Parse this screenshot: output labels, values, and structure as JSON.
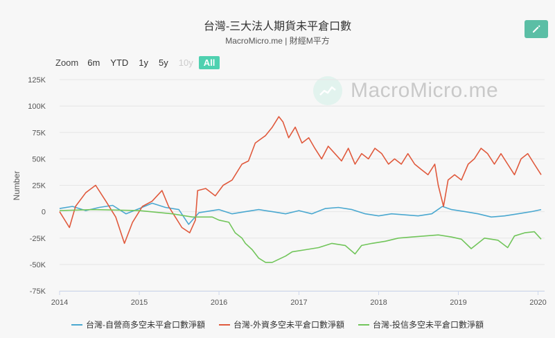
{
  "header": {
    "title": "台灣-三大法人期貨未平倉口數",
    "subtitle": "MacroMicro.me | 財經M平方"
  },
  "watermark": {
    "text": "MacroMicro.me"
  },
  "range_selector": {
    "zoom_label": "Zoom",
    "buttons": [
      {
        "label": "6m",
        "state": "normal"
      },
      {
        "label": "YTD",
        "state": "normal"
      },
      {
        "label": "1y",
        "state": "normal"
      },
      {
        "label": "5y",
        "state": "normal"
      },
      {
        "label": "10y",
        "state": "disabled"
      },
      {
        "label": "All",
        "state": "active"
      }
    ]
  },
  "colors": {
    "dealer": "#4aa8d0",
    "foreign": "#e0593c",
    "trust": "#71c55a",
    "accent": "#4fd1b0",
    "edit_button": "#5bbea5"
  },
  "chart_data": {
    "type": "line",
    "title": "台灣-三大法人期貨未平倉口數",
    "subtitle": "MacroMicro.me | 財經M平方",
    "xlabel": "",
    "ylabel": "Number",
    "xlim": [
      "2014-01-01",
      "2020-01-31"
    ],
    "ylim": [
      -75000,
      125000
    ],
    "x_ticks": [
      "2014",
      "2015",
      "2016",
      "2017",
      "2018",
      "2019",
      "2020"
    ],
    "y_ticks": [
      "125K",
      "100K",
      "75K",
      "50K",
      "25K",
      "0",
      "-25K",
      "-50K",
      "-75K"
    ],
    "y_tick_values": [
      125000,
      100000,
      75000,
      50000,
      25000,
      0,
      -25000,
      -50000,
      -75000
    ],
    "grid": "horizontal",
    "legend": "bottom-center",
    "series": [
      {
        "name": "台灣-自營商多空未平倉口數淨額",
        "color": "#4aa8d0",
        "points": [
          [
            "2014-01-01",
            3000
          ],
          [
            "2014-03-01",
            5000
          ],
          [
            "2014-05-01",
            1000
          ],
          [
            "2014-07-01",
            4000
          ],
          [
            "2014-09-01",
            6000
          ],
          [
            "2014-11-01",
            -2000
          ],
          [
            "2015-01-01",
            3000
          ],
          [
            "2015-03-01",
            8000
          ],
          [
            "2015-05-01",
            4000
          ],
          [
            "2015-07-01",
            2000
          ],
          [
            "2015-08-15",
            -12000
          ],
          [
            "2015-10-01",
            -1000
          ],
          [
            "2016-01-01",
            2000
          ],
          [
            "2016-03-01",
            -2000
          ],
          [
            "2016-05-01",
            0
          ],
          [
            "2016-07-01",
            2000
          ],
          [
            "2016-09-01",
            0
          ],
          [
            "2016-11-01",
            -2000
          ],
          [
            "2017-01-01",
            1000
          ],
          [
            "2017-03-01",
            -2000
          ],
          [
            "2017-05-01",
            3000
          ],
          [
            "2017-07-01",
            4000
          ],
          [
            "2017-09-01",
            2000
          ],
          [
            "2017-11-01",
            -2000
          ],
          [
            "2018-01-01",
            -4000
          ],
          [
            "2018-03-01",
            -2000
          ],
          [
            "2018-05-01",
            -3000
          ],
          [
            "2018-07-01",
            -4000
          ],
          [
            "2018-09-01",
            -2000
          ],
          [
            "2018-10-20",
            5000
          ],
          [
            "2018-12-01",
            2000
          ],
          [
            "2019-02-01",
            0
          ],
          [
            "2019-04-01",
            -2000
          ],
          [
            "2019-06-01",
            -5000
          ],
          [
            "2019-08-01",
            -4000
          ],
          [
            "2019-10-01",
            -2000
          ],
          [
            "2019-12-01",
            0
          ],
          [
            "2020-01-15",
            2000
          ]
        ]
      },
      {
        "name": "台灣-外資多空未平倉口數淨額",
        "color": "#e0593c",
        "points": [
          [
            "2014-01-01",
            0
          ],
          [
            "2014-02-15",
            -15000
          ],
          [
            "2014-03-15",
            5000
          ],
          [
            "2014-05-01",
            18000
          ],
          [
            "2014-06-15",
            25000
          ],
          [
            "2014-08-01",
            10000
          ],
          [
            "2014-09-15",
            -5000
          ],
          [
            "2014-10-25",
            -30000
          ],
          [
            "2014-12-01",
            -10000
          ],
          [
            "2015-01-15",
            5000
          ],
          [
            "2015-03-01",
            10000
          ],
          [
            "2015-04-15",
            20000
          ],
          [
            "2015-05-15",
            5000
          ],
          [
            "2015-06-15",
            -5000
          ],
          [
            "2015-07-15",
            -15000
          ],
          [
            "2015-08-20",
            -20000
          ],
          [
            "2015-09-15",
            -8000
          ],
          [
            "2015-09-25",
            20000
          ],
          [
            "2015-11-01",
            22000
          ],
          [
            "2015-12-15",
            15000
          ],
          [
            "2016-01-20",
            25000
          ],
          [
            "2016-03-01",
            30000
          ],
          [
            "2016-04-15",
            45000
          ],
          [
            "2016-05-15",
            48000
          ],
          [
            "2016-06-15",
            65000
          ],
          [
            "2016-08-01",
            72000
          ],
          [
            "2016-09-01",
            80000
          ],
          [
            "2016-10-01",
            90000
          ],
          [
            "2016-10-20",
            85000
          ],
          [
            "2016-11-15",
            70000
          ],
          [
            "2016-12-15",
            80000
          ],
          [
            "2017-01-15",
            65000
          ],
          [
            "2017-02-15",
            70000
          ],
          [
            "2017-03-15",
            60000
          ],
          [
            "2017-04-15",
            50000
          ],
          [
            "2017-05-15",
            62000
          ],
          [
            "2017-06-15",
            55000
          ],
          [
            "2017-07-15",
            48000
          ],
          [
            "2017-08-15",
            60000
          ],
          [
            "2017-09-15",
            45000
          ],
          [
            "2017-10-15",
            55000
          ],
          [
            "2017-11-15",
            50000
          ],
          [
            "2017-12-15",
            60000
          ],
          [
            "2018-01-15",
            55000
          ],
          [
            "2018-02-15",
            45000
          ],
          [
            "2018-03-15",
            50000
          ],
          [
            "2018-04-15",
            45000
          ],
          [
            "2018-05-15",
            55000
          ],
          [
            "2018-06-15",
            45000
          ],
          [
            "2018-07-15",
            40000
          ],
          [
            "2018-08-15",
            35000
          ],
          [
            "2018-09-15",
            45000
          ],
          [
            "2018-10-01",
            25000
          ],
          [
            "2018-10-25",
            5000
          ],
          [
            "2018-11-15",
            30000
          ],
          [
            "2018-12-15",
            35000
          ],
          [
            "2019-01-15",
            30000
          ],
          [
            "2019-02-15",
            45000
          ],
          [
            "2019-03-15",
            50000
          ],
          [
            "2019-04-15",
            60000
          ],
          [
            "2019-05-15",
            55000
          ],
          [
            "2019-06-15",
            45000
          ],
          [
            "2019-07-15",
            55000
          ],
          [
            "2019-08-15",
            45000
          ],
          [
            "2019-09-15",
            35000
          ],
          [
            "2019-10-15",
            50000
          ],
          [
            "2019-11-15",
            55000
          ],
          [
            "2019-12-15",
            45000
          ],
          [
            "2020-01-15",
            35000
          ]
        ]
      },
      {
        "name": "台灣-投信多空未平倉口數淨額",
        "color": "#71c55a",
        "points": [
          [
            "2014-01-01",
            1000
          ],
          [
            "2014-06-01",
            2000
          ],
          [
            "2015-01-01",
            1000
          ],
          [
            "2015-06-01",
            -2000
          ],
          [
            "2015-09-01",
            -5000
          ],
          [
            "2015-12-01",
            -5000
          ],
          [
            "2016-01-01",
            -8000
          ],
          [
            "2016-02-15",
            -10000
          ],
          [
            "2016-03-15",
            -20000
          ],
          [
            "2016-04-15",
            -25000
          ],
          [
            "2016-05-01",
            -30000
          ],
          [
            "2016-06-01",
            -36000
          ],
          [
            "2016-07-01",
            -44000
          ],
          [
            "2016-08-01",
            -48000
          ],
          [
            "2016-09-01",
            -48000
          ],
          [
            "2016-10-01",
            -45000
          ],
          [
            "2016-11-01",
            -42000
          ],
          [
            "2016-12-01",
            -38000
          ],
          [
            "2017-02-01",
            -36000
          ],
          [
            "2017-04-01",
            -34000
          ],
          [
            "2017-06-01",
            -30000
          ],
          [
            "2017-08-01",
            -32000
          ],
          [
            "2017-09-15",
            -40000
          ],
          [
            "2017-10-15",
            -32000
          ],
          [
            "2017-12-01",
            -30000
          ],
          [
            "2018-02-01",
            -28000
          ],
          [
            "2018-04-01",
            -25000
          ],
          [
            "2018-06-01",
            -24000
          ],
          [
            "2018-08-01",
            -23000
          ],
          [
            "2018-10-01",
            -22000
          ],
          [
            "2018-12-01",
            -24000
          ],
          [
            "2019-01-15",
            -26000
          ],
          [
            "2019-03-01",
            -35000
          ],
          [
            "2019-05-01",
            -25000
          ],
          [
            "2019-07-01",
            -27000
          ],
          [
            "2019-08-15",
            -34000
          ],
          [
            "2019-09-15",
            -23000
          ],
          [
            "2019-11-01",
            -20000
          ],
          [
            "2019-12-15",
            -19000
          ],
          [
            "2020-01-15",
            -26000
          ]
        ]
      }
    ]
  }
}
